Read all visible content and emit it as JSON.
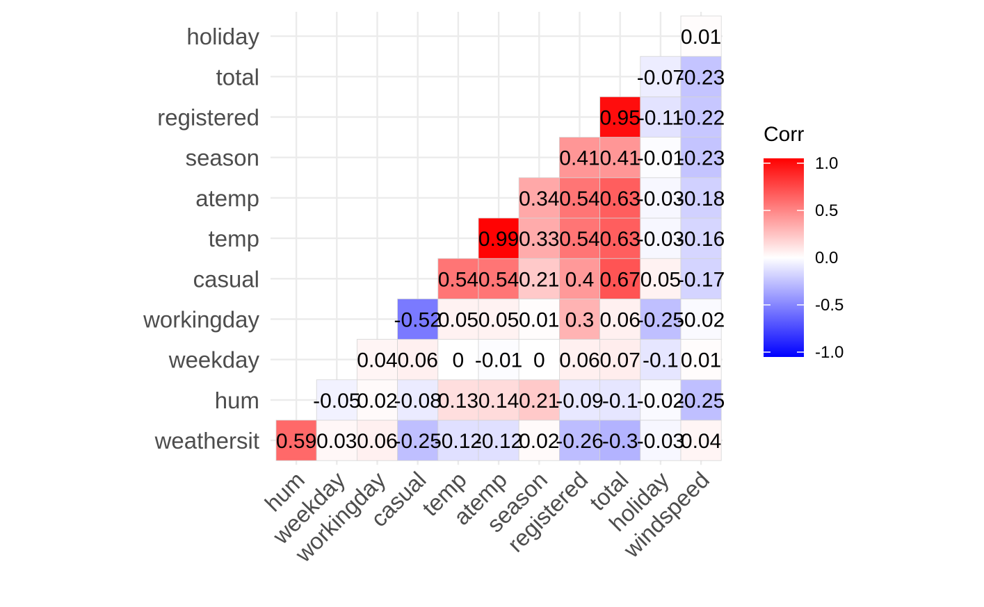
{
  "chart_data": {
    "type": "heatmap",
    "title": "",
    "xlabel": "",
    "ylabel": "",
    "x_categories": [
      "hum",
      "weekday",
      "workingday",
      "casual",
      "temp",
      "atemp",
      "season",
      "registered",
      "total",
      "holiday",
      "windspeed"
    ],
    "y_categories": [
      "weathersit",
      "hum",
      "weekday",
      "workingday",
      "casual",
      "temp",
      "atemp",
      "season",
      "registered",
      "total",
      "holiday"
    ],
    "cells": [
      {
        "x": "hum",
        "y": "weathersit",
        "value": 0.59,
        "label": "0.59"
      },
      {
        "x": "weekday",
        "y": "weathersit",
        "value": 0.03,
        "label": "0.03"
      },
      {
        "x": "weekday",
        "y": "hum",
        "value": -0.05,
        "label": "-0.05"
      },
      {
        "x": "workingday",
        "y": "weathersit",
        "value": 0.06,
        "label": "0.06"
      },
      {
        "x": "workingday",
        "y": "hum",
        "value": 0.02,
        "label": "0.02"
      },
      {
        "x": "workingday",
        "y": "weekday",
        "value": 0.04,
        "label": "0.04"
      },
      {
        "x": "casual",
        "y": "weathersit",
        "value": -0.25,
        "label": "-0.25"
      },
      {
        "x": "casual",
        "y": "hum",
        "value": -0.08,
        "label": "-0.08"
      },
      {
        "x": "casual",
        "y": "weekday",
        "value": 0.06,
        "label": "0.06"
      },
      {
        "x": "casual",
        "y": "workingday",
        "value": -0.52,
        "label": "-0.52"
      },
      {
        "x": "temp",
        "y": "weathersit",
        "value": -0.12,
        "label": "-0.12"
      },
      {
        "x": "temp",
        "y": "hum",
        "value": 0.13,
        "label": "0.13"
      },
      {
        "x": "temp",
        "y": "weekday",
        "value": 0,
        "label": "0"
      },
      {
        "x": "temp",
        "y": "workingday",
        "value": 0.05,
        "label": "0.05"
      },
      {
        "x": "temp",
        "y": "casual",
        "value": 0.54,
        "label": "0.54"
      },
      {
        "x": "atemp",
        "y": "weathersit",
        "value": -0.12,
        "label": "-0.12"
      },
      {
        "x": "atemp",
        "y": "hum",
        "value": 0.14,
        "label": "0.14"
      },
      {
        "x": "atemp",
        "y": "weekday",
        "value": -0.01,
        "label": "-0.01"
      },
      {
        "x": "atemp",
        "y": "workingday",
        "value": 0.05,
        "label": "0.05"
      },
      {
        "x": "atemp",
        "y": "casual",
        "value": 0.54,
        "label": "0.54"
      },
      {
        "x": "atemp",
        "y": "temp",
        "value": 0.99,
        "label": "0.99"
      },
      {
        "x": "season",
        "y": "weathersit",
        "value": 0.02,
        "label": "0.02"
      },
      {
        "x": "season",
        "y": "hum",
        "value": 0.21,
        "label": "0.21"
      },
      {
        "x": "season",
        "y": "weekday",
        "value": 0,
        "label": "0"
      },
      {
        "x": "season",
        "y": "workingday",
        "value": 0.01,
        "label": "0.01"
      },
      {
        "x": "season",
        "y": "casual",
        "value": 0.21,
        "label": "0.21"
      },
      {
        "x": "season",
        "y": "temp",
        "value": 0.33,
        "label": "0.33"
      },
      {
        "x": "season",
        "y": "atemp",
        "value": 0.34,
        "label": "0.34"
      },
      {
        "x": "registered",
        "y": "weathersit",
        "value": -0.26,
        "label": "-0.26"
      },
      {
        "x": "registered",
        "y": "hum",
        "value": -0.09,
        "label": "-0.09"
      },
      {
        "x": "registered",
        "y": "weekday",
        "value": 0.06,
        "label": "0.06"
      },
      {
        "x": "registered",
        "y": "workingday",
        "value": 0.3,
        "label": "0.3"
      },
      {
        "x": "registered",
        "y": "casual",
        "value": 0.4,
        "label": "0.4"
      },
      {
        "x": "registered",
        "y": "temp",
        "value": 0.54,
        "label": "0.54"
      },
      {
        "x": "registered",
        "y": "atemp",
        "value": 0.54,
        "label": "0.54"
      },
      {
        "x": "registered",
        "y": "season",
        "value": 0.41,
        "label": "0.41"
      },
      {
        "x": "total",
        "y": "weathersit",
        "value": -0.3,
        "label": "-0.3"
      },
      {
        "x": "total",
        "y": "hum",
        "value": -0.1,
        "label": "-0.1"
      },
      {
        "x": "total",
        "y": "weekday",
        "value": 0.07,
        "label": "0.07"
      },
      {
        "x": "total",
        "y": "workingday",
        "value": 0.06,
        "label": "0.06"
      },
      {
        "x": "total",
        "y": "casual",
        "value": 0.67,
        "label": "0.67"
      },
      {
        "x": "total",
        "y": "temp",
        "value": 0.63,
        "label": "0.63"
      },
      {
        "x": "total",
        "y": "atemp",
        "value": 0.63,
        "label": "0.63"
      },
      {
        "x": "total",
        "y": "season",
        "value": 0.41,
        "label": "0.41"
      },
      {
        "x": "total",
        "y": "registered",
        "value": 0.95,
        "label": "0.95"
      },
      {
        "x": "holiday",
        "y": "weathersit",
        "value": -0.03,
        "label": "-0.03"
      },
      {
        "x": "holiday",
        "y": "hum",
        "value": -0.02,
        "label": "-0.02"
      },
      {
        "x": "holiday",
        "y": "weekday",
        "value": -0.1,
        "label": "-0.1"
      },
      {
        "x": "holiday",
        "y": "workingday",
        "value": -0.25,
        "label": "-0.25"
      },
      {
        "x": "holiday",
        "y": "casual",
        "value": 0.05,
        "label": "0.05"
      },
      {
        "x": "holiday",
        "y": "temp",
        "value": -0.03,
        "label": "-0.03"
      },
      {
        "x": "holiday",
        "y": "atemp",
        "value": -0.03,
        "label": "-0.03"
      },
      {
        "x": "holiday",
        "y": "season",
        "value": -0.01,
        "label": "-0.01"
      },
      {
        "x": "holiday",
        "y": "registered",
        "value": -0.11,
        "label": "-0.11"
      },
      {
        "x": "holiday",
        "y": "total",
        "value": -0.07,
        "label": "-0.07"
      },
      {
        "x": "windspeed",
        "y": "weathersit",
        "value": 0.04,
        "label": "0.04"
      },
      {
        "x": "windspeed",
        "y": "hum",
        "value": -0.25,
        "label": "-0.25"
      },
      {
        "x": "windspeed",
        "y": "weekday",
        "value": 0.01,
        "label": "0.01"
      },
      {
        "x": "windspeed",
        "y": "workingday",
        "value": -0.02,
        "label": "-0.02"
      },
      {
        "x": "windspeed",
        "y": "casual",
        "value": -0.17,
        "label": "-0.17"
      },
      {
        "x": "windspeed",
        "y": "temp",
        "value": -0.16,
        "label": "-0.16"
      },
      {
        "x": "windspeed",
        "y": "atemp",
        "value": -0.18,
        "label": "-0.18"
      },
      {
        "x": "windspeed",
        "y": "season",
        "value": -0.23,
        "label": "-0.23"
      },
      {
        "x": "windspeed",
        "y": "registered",
        "value": -0.22,
        "label": "-0.22"
      },
      {
        "x": "windspeed",
        "y": "total",
        "value": -0.23,
        "label": "-0.23"
      },
      {
        "x": "windspeed",
        "y": "holiday",
        "value": 0.01,
        "label": "0.01"
      }
    ],
    "legend": {
      "title": "Corr",
      "range": [
        -1,
        1
      ],
      "ticks": [
        1.0,
        0.5,
        0.0,
        -0.5,
        -1.0
      ],
      "tick_labels": [
        "1.0",
        "0.5",
        "0.0",
        "-0.5",
        "-1.0"
      ],
      "colors": {
        "low": "#0000ff",
        "mid": "#ffffff",
        "high": "#ff0000"
      },
      "placement": "right"
    },
    "grid": true
  }
}
